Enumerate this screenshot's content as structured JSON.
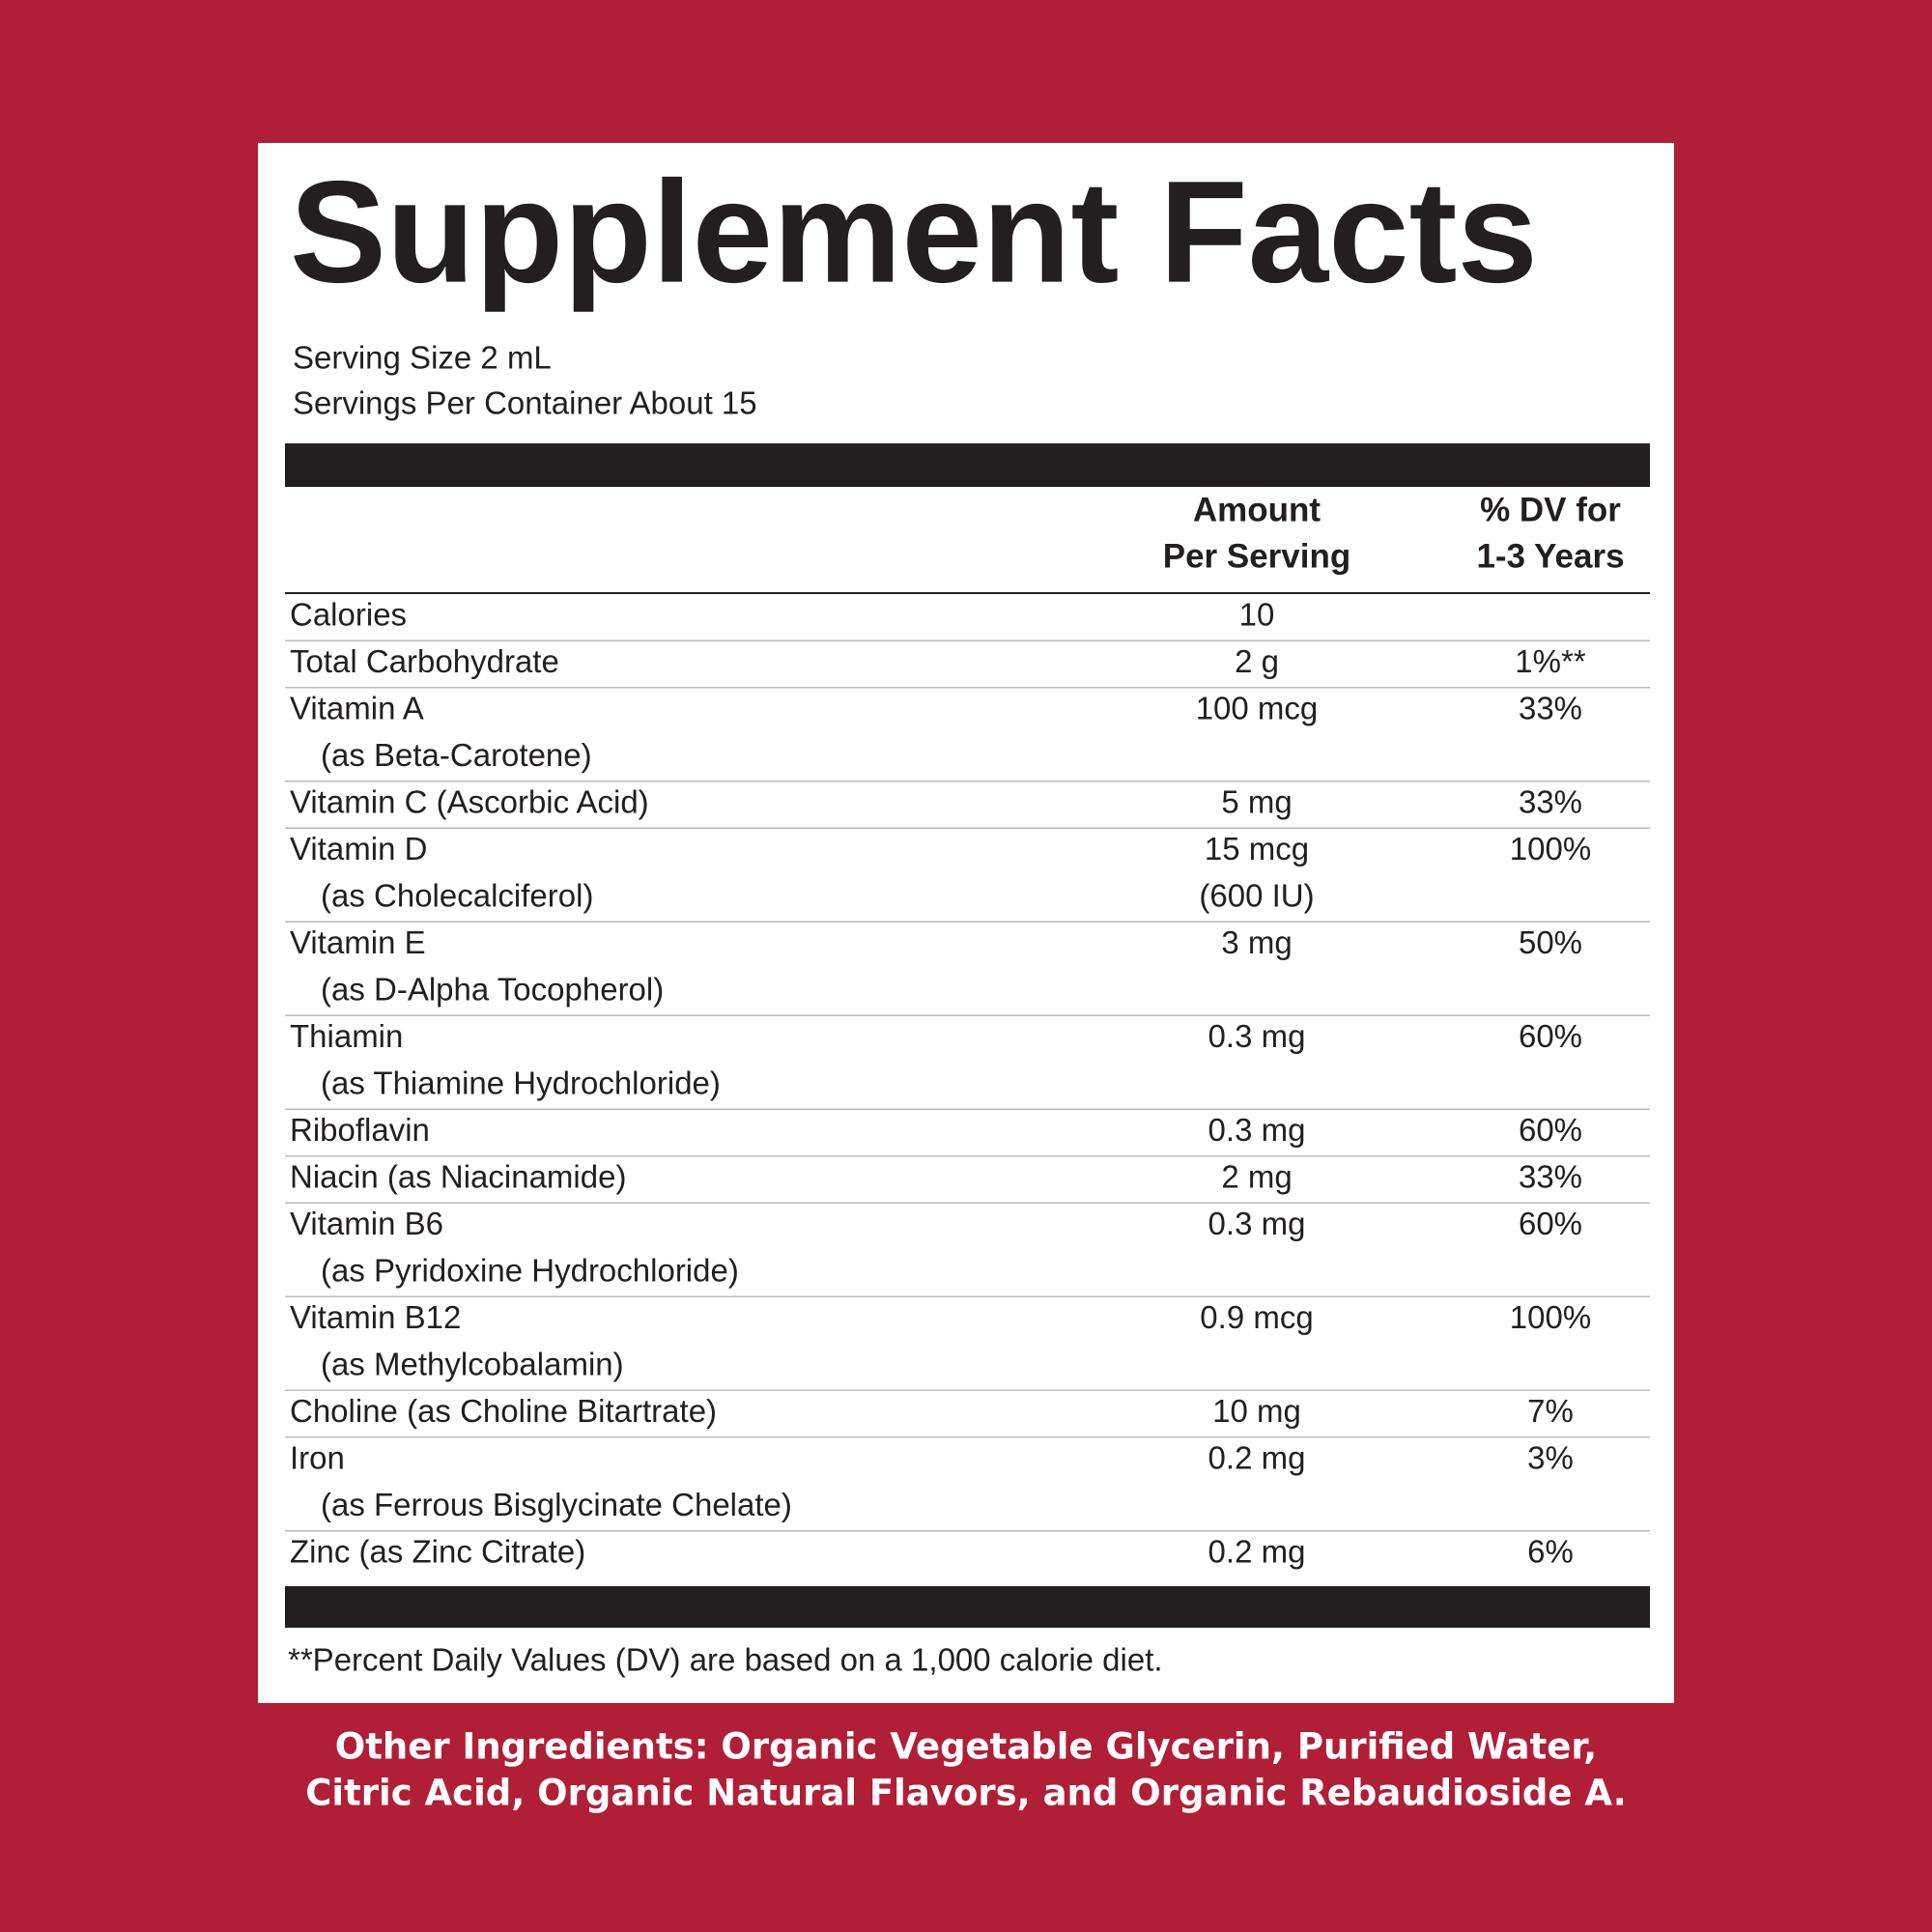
{
  "title": "Supplement Facts",
  "serving_size": "Serving Size 2 mL",
  "servings_per_container": "Servings Per Container About 15",
  "table": {
    "header": {
      "amount": [
        "Amount",
        "Per Serving"
      ],
      "dv": [
        "% DV for",
        "1-3 Years"
      ]
    },
    "rows": [
      {
        "name": "Calories",
        "amount": [
          "10"
        ]
      },
      {
        "name": "Total Carbohydrate",
        "amount": [
          "2 g"
        ],
        "dv": "1%**"
      },
      {
        "name": "Vitamin A",
        "sub": "(as Beta-Carotene)",
        "amount": [
          "100 mcg"
        ],
        "dv": "33%"
      },
      {
        "name": "Vitamin C (Ascorbic Acid)",
        "amount": [
          "5 mg"
        ],
        "dv": "33%"
      },
      {
        "name": "Vitamin D",
        "sub": "(as Cholecalciferol)",
        "amount": [
          "15 mcg",
          "(600 IU)"
        ],
        "dv": "100%"
      },
      {
        "name": "Vitamin E",
        "sub": "(as D-Alpha Tocopherol)",
        "amount": [
          "3 mg"
        ],
        "dv": "50%"
      },
      {
        "name": "Thiamin",
        "sub": "(as Thiamine Hydrochloride)",
        "amount": [
          "0.3 mg"
        ],
        "dv": "60%"
      },
      {
        "name": "Riboflavin",
        "amount": [
          "0.3 mg"
        ],
        "dv": "60%"
      },
      {
        "name": "Niacin (as Niacinamide)",
        "amount": [
          "2 mg"
        ],
        "dv": "33%"
      },
      {
        "name": "Vitamin B6",
        "sub": "(as Pyridoxine Hydrochloride)",
        "amount": [
          "0.3 mg"
        ],
        "dv": "60%"
      },
      {
        "name": "Vitamin B12",
        "sub": "(as Methylcobalamin)",
        "amount": [
          "0.9 mcg"
        ],
        "dv": "100%"
      },
      {
        "name": "Choline (as Choline Bitartrate)",
        "amount": [
          "10 mg"
        ],
        "dv": "7%"
      },
      {
        "name": "Iron",
        "sub": "(as Ferrous Bisglycinate Chelate)",
        "amount": [
          "0.2 mg"
        ],
        "dv": "3%"
      },
      {
        "name": "Zinc (as Zinc Citrate)",
        "amount": [
          "0.2 mg"
        ],
        "dv": "6%"
      }
    ]
  },
  "footnote": "**Percent Daily Values (DV) are based on a 1,000 calorie diet.",
  "other_ingredients": [
    "Other Ingredients: Organic Vegetable Glycerin, Purified Water,",
    "Citric Acid, Organic Natural Flavors, and Organic Rebaudioside A."
  ]
}
